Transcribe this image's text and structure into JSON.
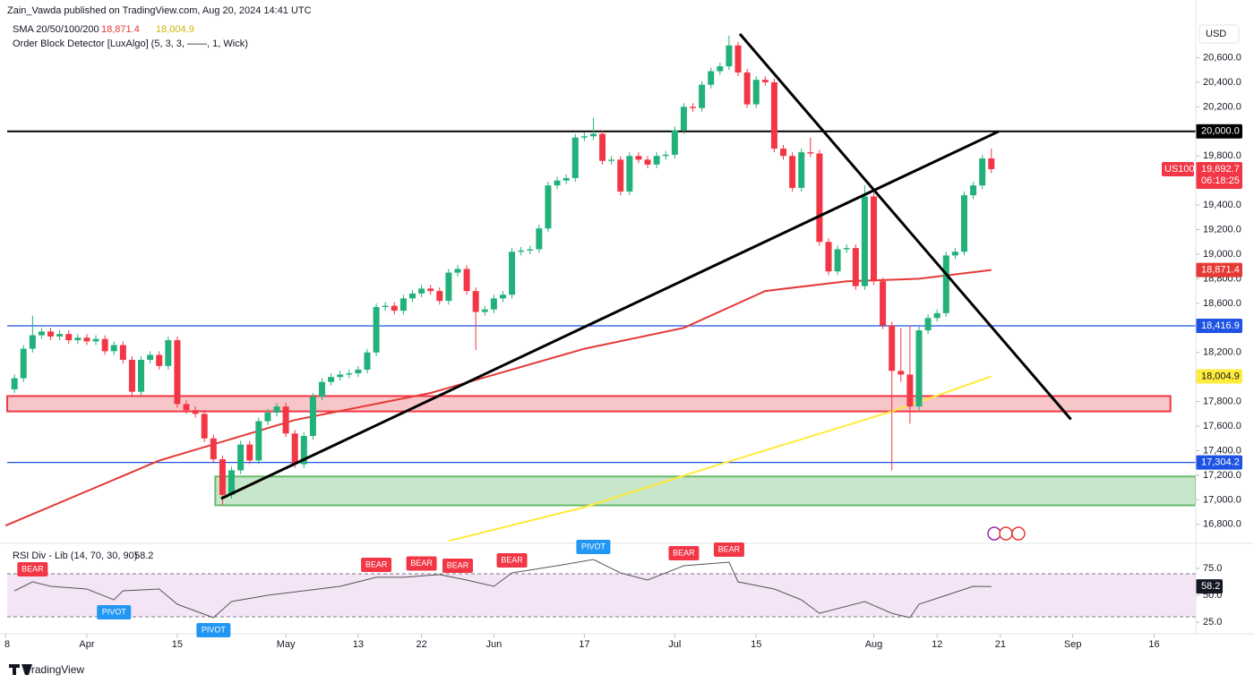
{
  "header": {
    "publisher": "Zain_Vawda published on TradingView.com, Aug 20, 2024 14:41 UTC",
    "sma_legend": "SMA 20/50/100/200",
    "order_block": "Order Block Detector [LuxAlgo] (5, 3, 3, ——, 1, Wick)",
    "currency": "USD",
    "footer": "TradingView"
  },
  "chart_data": [
    {
      "type": "candlestick",
      "symbol": "US100",
      "countdown": "06:18:25",
      "close_label": "19,692.7",
      "up_color": "#22b17a",
      "down_color": "#f23645",
      "grid": false,
      "xlim": [
        -1.6,
        130.6
      ],
      "ylim": [
        16660,
        21070
      ],
      "yticks": [
        {
          "value": 16800,
          "label": "16,800.0"
        },
        {
          "value": 17000,
          "label": "17,000.0"
        },
        {
          "value": 17200,
          "label": "17,200.0"
        },
        {
          "value": 17400,
          "label": "17,400.0"
        },
        {
          "value": 17600,
          "label": "17,600.0"
        },
        {
          "value": 17800,
          "label": "17,800.0"
        },
        {
          "value": 18000,
          "label": "18,000.0"
        },
        {
          "value": 18200,
          "label": "18,200.0"
        },
        {
          "value": 18400,
          "label": "18,400.0"
        },
        {
          "value": 18600,
          "label": "18,600.0"
        },
        {
          "value": 18800,
          "label": "18,800.0"
        },
        {
          "value": 19000,
          "label": "19,000.0"
        },
        {
          "value": 19200,
          "label": "19,200.0"
        },
        {
          "value": 19400,
          "label": "19,400.0"
        },
        {
          "value": 19600,
          "label": "19,600.0"
        },
        {
          "value": 19800,
          "label": "19,800.0"
        },
        {
          "value": 20000,
          "label": "20,000.0"
        },
        {
          "value": 20200,
          "label": "20,200.0"
        },
        {
          "value": 20400,
          "label": "20,400.0"
        },
        {
          "value": 20600,
          "label": "20,600.0"
        }
      ],
      "xticks": [
        {
          "value": -1,
          "label": "8"
        },
        {
          "value": 8,
          "label": "Apr"
        },
        {
          "value": 18,
          "label": "15"
        },
        {
          "value": 30,
          "label": "May"
        },
        {
          "value": 38,
          "label": "13"
        },
        {
          "value": 45,
          "label": "22"
        },
        {
          "value": 53,
          "label": "Jun"
        },
        {
          "value": 63,
          "label": "17"
        },
        {
          "value": 73,
          "label": "Jul"
        },
        {
          "value": 82,
          "label": "15"
        },
        {
          "value": 95,
          "label": "Aug"
        },
        {
          "value": 102,
          "label": "12"
        },
        {
          "value": 109,
          "label": "21"
        },
        {
          "value": 117,
          "label": "Sep"
        },
        {
          "value": 126,
          "label": "16"
        }
      ],
      "open": [
        17900,
        17990,
        18230,
        18340,
        18370,
        18330,
        18350,
        18300,
        18320,
        18290,
        18310,
        18210,
        18260,
        18140,
        17880,
        18140,
        18180,
        18090,
        18300,
        17780,
        17730,
        17700,
        17500,
        17330,
        17040,
        17240,
        17450,
        17320,
        17640,
        17710,
        17760,
        17540,
        17290,
        17520,
        17840,
        17960,
        18000,
        18020,
        18030,
        18060,
        18200,
        18570,
        18580,
        18540,
        18640,
        18680,
        18720,
        18700,
        18620,
        18850,
        18880,
        18700,
        18530,
        18550,
        18640,
        18670,
        19020,
        19030,
        19040,
        19210,
        19560,
        19600,
        19620,
        19950,
        19960,
        19980,
        19760,
        19770,
        19510,
        19800,
        19770,
        19730,
        19800,
        19810,
        20010,
        20200,
        20190,
        20380,
        20490,
        20530,
        20700,
        20480,
        20220,
        20420,
        20400,
        19860,
        19800,
        19540,
        19830,
        19820,
        19100,
        18860,
        19040,
        19050,
        18740,
        19470,
        18780,
        18420,
        18050,
        18020,
        17760,
        18380,
        18480,
        18520,
        18990,
        19020,
        19480,
        19560,
        19780
      ],
      "high": [
        18020,
        18260,
        18500,
        18400,
        18400,
        18380,
        18380,
        18350,
        18350,
        18340,
        18340,
        18290,
        18290,
        18170,
        18170,
        18210,
        18210,
        18330,
        18330,
        17810,
        17760,
        17730,
        17530,
        17360,
        17270,
        17480,
        17480,
        17670,
        17740,
        17790,
        17790,
        17570,
        17550,
        17870,
        17990,
        18030,
        18050,
        18060,
        18090,
        18230,
        18600,
        18610,
        18610,
        18670,
        18710,
        18750,
        18750,
        18730,
        18880,
        18910,
        18910,
        18730,
        18580,
        18670,
        18700,
        19050,
        19060,
        19070,
        19240,
        19590,
        19630,
        19650,
        19980,
        19990,
        20110,
        20010,
        19800,
        19800,
        19830,
        19830,
        19800,
        19830,
        19840,
        20040,
        20230,
        20230,
        20410,
        20520,
        20560,
        20780,
        20730,
        20510,
        20450,
        20450,
        20430,
        19890,
        19830,
        19860,
        19950,
        19850,
        19130,
        19070,
        19080,
        19080,
        19560,
        19500,
        18810,
        18450,
        18400,
        18420,
        18410,
        18510,
        18550,
        19020,
        19050,
        19510,
        19590,
        19810,
        19860
      ],
      "low": [
        17870,
        17960,
        18200,
        18310,
        18300,
        18300,
        18270,
        18270,
        18260,
        18260,
        18180,
        18180,
        18110,
        17850,
        17850,
        18110,
        18060,
        18060,
        17750,
        17700,
        17670,
        17470,
        17300,
        16960,
        17010,
        17210,
        17290,
        17290,
        17610,
        17680,
        17510,
        17260,
        17260,
        17490,
        17810,
        17930,
        17970,
        17990,
        18000,
        18030,
        18170,
        18540,
        18510,
        18510,
        18610,
        18650,
        18670,
        18590,
        18590,
        18820,
        18670,
        18220,
        18500,
        18520,
        18610,
        18640,
        18990,
        19000,
        19010,
        19180,
        19530,
        19570,
        19590,
        19920,
        19930,
        19730,
        19730,
        19480,
        19480,
        19740,
        19700,
        19700,
        19770,
        19780,
        19980,
        20160,
        20160,
        20350,
        20460,
        20500,
        20450,
        20190,
        20190,
        20370,
        19830,
        19770,
        19510,
        19510,
        19790,
        19070,
        18830,
        18830,
        19010,
        18710,
        18710,
        18750,
        18390,
        17240,
        17960,
        17620,
        17730,
        18350,
        18450,
        18490,
        18960,
        18990,
        19450,
        19530,
        19660
      ],
      "close": [
        17990,
        18230,
        18340,
        18370,
        18330,
        18350,
        18300,
        18320,
        18290,
        18310,
        18210,
        18260,
        18140,
        17880,
        18140,
        18180,
        18090,
        18300,
        17780,
        17730,
        17700,
        17500,
        17330,
        17040,
        17240,
        17450,
        17320,
        17640,
        17710,
        17760,
        17540,
        17290,
        17520,
        17840,
        17960,
        18000,
        18020,
        18030,
        18060,
        18200,
        18570,
        18580,
        18540,
        18640,
        18680,
        18720,
        18700,
        18620,
        18850,
        18880,
        18700,
        18530,
        18550,
        18640,
        18670,
        19020,
        19030,
        19040,
        19210,
        19560,
        19600,
        19620,
        19950,
        19960,
        19980,
        19760,
        19770,
        19510,
        19800,
        19770,
        19730,
        19800,
        19810,
        20010,
        20200,
        20190,
        20380,
        20490,
        20530,
        20700,
        20480,
        20220,
        20420,
        20400,
        19860,
        19800,
        19540,
        19830,
        19820,
        19100,
        18860,
        19040,
        19050,
        18740,
        19470,
        18780,
        18420,
        18050,
        18020,
        17760,
        18380,
        18480,
        18520,
        18990,
        19020,
        19480,
        19560,
        19780,
        19692.7
      ],
      "series": [
        {
          "color": "#e53935",
          "value_label": "18,871.4",
          "x": [
            -1,
            16,
            31,
            46,
            63,
            74,
            83,
            92,
            100,
            108
          ],
          "values": [
            16790,
            17320,
            17650,
            17870,
            18230,
            18400,
            18700,
            18780,
            18800,
            18871.4
          ]
        },
        {
          "color": "#ffeb3b",
          "value_label": "18,004.9",
          "x": [
            48,
            63,
            78,
            88,
            97,
            108
          ],
          "values": [
            16665,
            16940,
            17290,
            17515,
            17720,
            18004.9
          ]
        }
      ],
      "levels": [
        {
          "value": 20000,
          "label": "20,000.0",
          "color": "#000000"
        },
        {
          "value": 18416.9,
          "label": "18,416.9",
          "color": "#1e53e5"
        },
        {
          "value": 17304.2,
          "label": "17,304.2",
          "color": "#1e53e5"
        }
      ],
      "zones": [
        {
          "from": 17720,
          "to": 17845,
          "x": [
            -0.8,
            127.8
          ],
          "color": "#f7c6c9",
          "border": "#f23645"
        },
        {
          "from": 16955,
          "to": 17190,
          "x": [
            22.2,
            130.6
          ],
          "color": "#c8e6c9",
          "border": "#66bb6a"
        }
      ],
      "trendlines": [
        {
          "x": [
            22.85,
            108.8
          ],
          "values": [
            17010,
            20000
          ]
        },
        {
          "x": [
            80.2,
            116.8
          ],
          "values": [
            20794,
            17655
          ]
        }
      ]
    },
    {
      "type": "line",
      "title": "RSI Div - Lib (14, 70, 30, 90)",
      "current": 58.2,
      "color": "#555555",
      "ylim": [
        16.7,
        95.8
      ],
      "yticks": [
        {
          "value": 25,
          "label": "25.0"
        },
        {
          "value": 50,
          "label": "50.0"
        },
        {
          "value": 75,
          "label": "75.0"
        }
      ],
      "bands": [
        70,
        30
      ],
      "band_color": "#f3e5f5",
      "x": [
        0,
        2,
        4,
        8,
        11,
        12,
        16,
        18,
        22,
        24,
        28,
        32,
        36,
        40,
        43,
        47,
        50,
        53,
        55,
        60,
        64,
        67,
        70,
        74,
        79,
        80,
        84,
        87,
        89,
        94,
        97,
        99,
        100,
        103,
        106,
        108
      ],
      "values": [
        54.2,
        62.5,
        58.3,
        55.8,
        45.8,
        54.2,
        55.8,
        41.7,
        29.2,
        44.2,
        50,
        54.2,
        58.3,
        66.7,
        66.7,
        69.2,
        64.2,
        58.3,
        70.8,
        77.5,
        83.3,
        70.8,
        64.2,
        77.5,
        80.8,
        62.5,
        55.8,
        45.8,
        33.3,
        44.2,
        33.3,
        29.2,
        41.7,
        50,
        58.3,
        58.2
      ],
      "bear_color": "#f23645",
      "pivot_color": "#2196f3",
      "signals": [
        {
          "label": "BEAR",
          "x": 2
        },
        {
          "label": "PIVOT",
          "x": 11
        },
        {
          "label": "PIVOT",
          "x": 22
        },
        {
          "label": "BEAR",
          "x": 40
        },
        {
          "label": "BEAR",
          "x": 45
        },
        {
          "label": "BEAR",
          "x": 49
        },
        {
          "label": "BEAR",
          "x": 55
        },
        {
          "label": "PIVOT",
          "x": 64
        },
        {
          "label": "BEAR",
          "x": 74
        },
        {
          "label": "BEAR",
          "x": 79
        }
      ]
    }
  ]
}
